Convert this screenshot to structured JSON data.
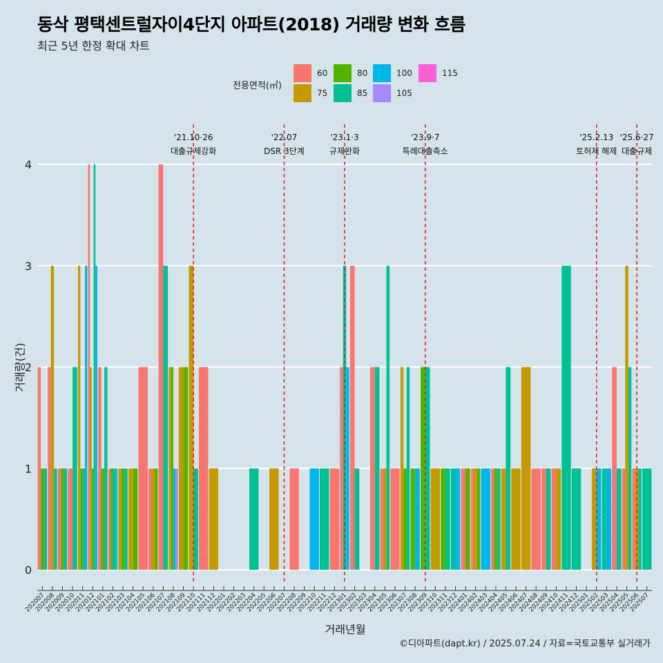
{
  "title": "동삭 평택센트럴자이4단지 아파트(2018) 거래량 변화 흐름",
  "subtitle": "최근 5년 한정 확대 차트",
  "caption": "©디아파트(dapt.kr) / 2025.07.24 / 자료=국토교통부 실거래가",
  "legend": {
    "title": "전용면적(㎡)",
    "items": [
      {
        "label": "60",
        "color": "#F8766D"
      },
      {
        "label": "75",
        "color": "#C49A00"
      },
      {
        "label": "80",
        "color": "#53B400"
      },
      {
        "label": "85",
        "color": "#00C094"
      },
      {
        "label": "100",
        "color": "#00B6EB"
      },
      {
        "label": "105",
        "color": "#A58AFF"
      },
      {
        "label": "115",
        "color": "#FB61D7"
      }
    ]
  },
  "chart_data": {
    "type": "bar",
    "title": "동삭 평택센트럴자이4단지 아파트(2018) 거래량 변화 흐름",
    "subtitle": "최근 5년 한정 확대 차트",
    "xlabel": "거래년월",
    "ylabel": "거래량(건)",
    "ylim": [
      0,
      4
    ],
    "yticks": [
      0,
      1,
      2,
      3,
      4
    ],
    "grid": true,
    "legend_position": "top",
    "categories": [
      "202007",
      "202008",
      "202009",
      "202010",
      "202011",
      "202012",
      "202101",
      "202102",
      "202103",
      "202104",
      "202105",
      "202106",
      "202107",
      "202108",
      "202109",
      "202110",
      "202111",
      "202112",
      "202201",
      "202202",
      "202203",
      "202204",
      "202205",
      "202206",
      "202207",
      "202208",
      "202209",
      "202210",
      "202211",
      "202212",
      "202301",
      "202302",
      "202303",
      "202304",
      "202305",
      "202306",
      "202307",
      "202308",
      "202309",
      "202310",
      "202311",
      "202312",
      "202401",
      "202402",
      "202403",
      "202404",
      "202405",
      "202406",
      "202407",
      "202408",
      "202409",
      "202410",
      "202411",
      "202412",
      "202501",
      "202502",
      "202503",
      "202504",
      "202505",
      "202506",
      "202507"
    ],
    "series": [
      {
        "name": "60",
        "color": "#F8766D",
        "values": [
          2,
          2,
          1,
          1,
          0,
          4,
          2,
          1,
          0,
          0,
          2,
          1,
          4,
          0,
          0,
          0,
          2,
          0,
          0,
          0,
          0,
          0,
          0,
          0,
          0,
          1,
          0,
          0,
          0,
          1,
          2,
          3,
          0,
          2,
          1,
          1,
          0,
          0,
          0,
          0,
          0,
          0,
          1,
          1,
          0,
          1,
          0,
          0,
          0,
          1,
          1,
          1,
          0,
          0,
          0,
          0,
          0,
          2,
          1,
          1,
          0
        ]
      },
      {
        "name": "75",
        "color": "#C49A00",
        "values": [
          0,
          3,
          0,
          0,
          3,
          2,
          0,
          0,
          1,
          1,
          0,
          1,
          0,
          2,
          2,
          3,
          0,
          1,
          0,
          0,
          0,
          0,
          0,
          1,
          0,
          0,
          0,
          0,
          0,
          0,
          0,
          0,
          0,
          0,
          1,
          0,
          2,
          0,
          0,
          1,
          0,
          0,
          0,
          1,
          0,
          0,
          1,
          1,
          2,
          0,
          0,
          1,
          0,
          0,
          0,
          1,
          0,
          0,
          3,
          1,
          0
        ]
      },
      {
        "name": "80",
        "color": "#53B400",
        "values": [
          1,
          0,
          1,
          0,
          1,
          1,
          1,
          1,
          1,
          1,
          0,
          1,
          0,
          2,
          2,
          0,
          0,
          0,
          0,
          0,
          0,
          0,
          0,
          0,
          0,
          0,
          0,
          0,
          0,
          0,
          0,
          0,
          0,
          0,
          0,
          0,
          1,
          1,
          2,
          0,
          1,
          0,
          1,
          1,
          0,
          1,
          0,
          0,
          0,
          0,
          0,
          0,
          0,
          0,
          0,
          0,
          0,
          0,
          0,
          0,
          0
        ]
      },
      {
        "name": "85",
        "color": "#00C094",
        "values": [
          1,
          1,
          1,
          2,
          1,
          4,
          2,
          1,
          1,
          0,
          0,
          0,
          3,
          0,
          0,
          1,
          0,
          0,
          0,
          0,
          0,
          1,
          0,
          0,
          0,
          0,
          0,
          0,
          1,
          0,
          3,
          1,
          0,
          2,
          3,
          0,
          2,
          0,
          2,
          0,
          1,
          1,
          0,
          0,
          0,
          1,
          2,
          0,
          0,
          0,
          1,
          0,
          3,
          1,
          0,
          0,
          1,
          1,
          2,
          1,
          1
        ]
      },
      {
        "name": "100",
        "color": "#00B6EB",
        "values": [
          0,
          0,
          0,
          0,
          3,
          3,
          0,
          1,
          0,
          0,
          0,
          0,
          0,
          1,
          0,
          0,
          0,
          0,
          0,
          0,
          0,
          0,
          0,
          0,
          0,
          0,
          0,
          1,
          0,
          0,
          2,
          0,
          0,
          0,
          0,
          0,
          0,
          1,
          0,
          0,
          0,
          1,
          0,
          0,
          1,
          0,
          0,
          0,
          0,
          0,
          0,
          0,
          0,
          0,
          0,
          1,
          1,
          0,
          0,
          0,
          0
        ]
      },
      {
        "name": "105",
        "color": "#A58AFF",
        "values": [
          0,
          0,
          0,
          0,
          0,
          0,
          0,
          0,
          0,
          0,
          0,
          0,
          0,
          1,
          0,
          0,
          0,
          0,
          0,
          0,
          0,
          0,
          0,
          0,
          0,
          0,
          0,
          0,
          0,
          0,
          0,
          0,
          0,
          0,
          0,
          0,
          0,
          0,
          0,
          0,
          0,
          0,
          0,
          0,
          0,
          0,
          0,
          0,
          0,
          0,
          0,
          0,
          0,
          0,
          0,
          0,
          0,
          0,
          0,
          0,
          0
        ]
      },
      {
        "name": "115",
        "color": "#FB61D7",
        "values": [
          0,
          0,
          0,
          0,
          0,
          0,
          0,
          0,
          0,
          0,
          0,
          0,
          0,
          0,
          0,
          0,
          0,
          0,
          0,
          0,
          0,
          0,
          0,
          0,
          0,
          0,
          0,
          0,
          0,
          0,
          0,
          0,
          0,
          0,
          0,
          0,
          0,
          0,
          0,
          0,
          0,
          0,
          0,
          0,
          0,
          0,
          0,
          0,
          0,
          0,
          0,
          0,
          0,
          0,
          0,
          0,
          0,
          0,
          0,
          0,
          0
        ]
      }
    ],
    "annotations": [
      {
        "at": "202110",
        "date": "'21.10·26",
        "label": "대출규제강화",
        "style": "dashed",
        "line_color": "#E41A1C"
      },
      {
        "at": "202207",
        "date": "'22.07",
        "label": "DSR 3단계",
        "style": "dashed",
        "line_color": "#E41A1C"
      },
      {
        "at": "202301",
        "date": "'23.1·3",
        "label": "규제완화",
        "style": "dashed",
        "line_color": "#E41A1C"
      },
      {
        "at": "202309",
        "date": "'23.9·7",
        "label": "특례대출축소",
        "style": "dashed",
        "line_color": "#E41A1C"
      },
      {
        "at": "202502",
        "date": "'25.2.13",
        "label": "토허제 해제",
        "style": "dashed",
        "line_color": "#E41A1C"
      },
      {
        "at": "202506",
        "date": "'25.6·27",
        "label": "대출규제",
        "style": "dashed",
        "line_color": "#E41A1C"
      }
    ]
  }
}
